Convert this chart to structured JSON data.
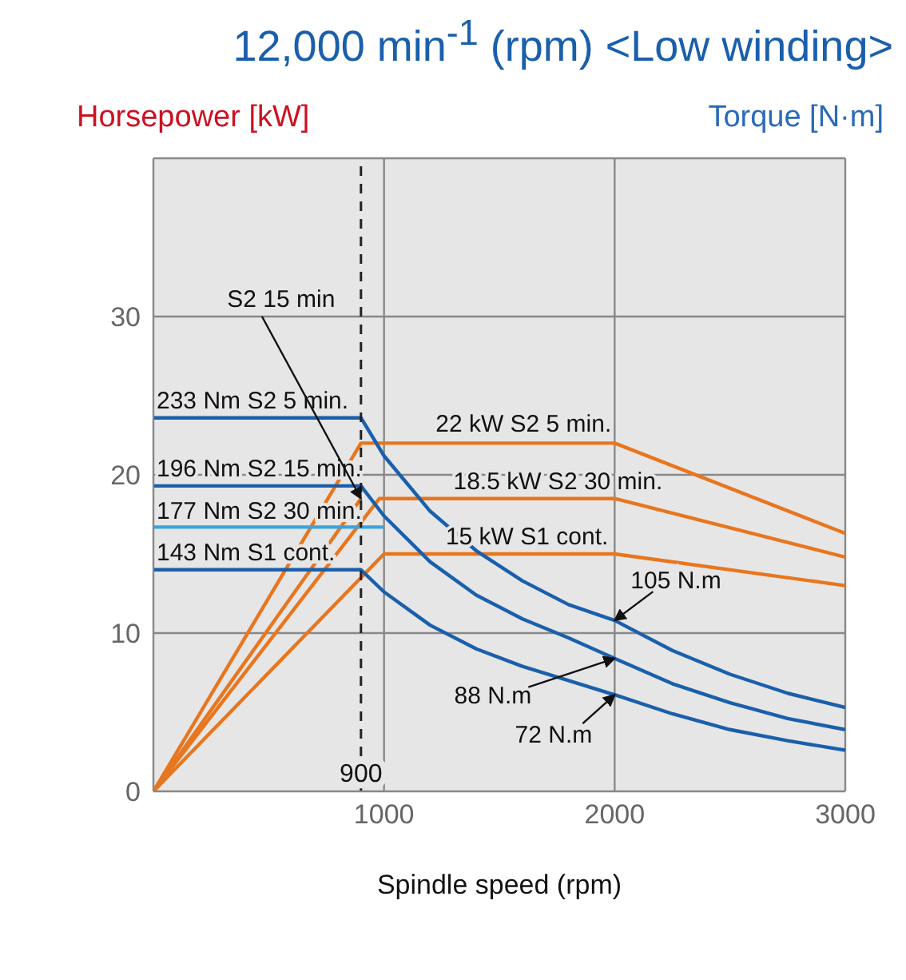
{
  "chart_data": {
    "type": "line",
    "title": "12,000 min$^{-1}$ (rpm) <Low winding>",
    "xlabel": "Spindle speed (rpm)",
    "ylabel": "Horsepower [kW]",
    "y2label": "Torque [N·m]",
    "series": [
      {
        "color": "#e8761e",
        "x": [
          0,
          900,
          2000,
          3000
        ],
        "values": [
          0,
          22,
          22,
          16.3
        ]
      },
      {
        "color": "#e8761e",
        "x": [
          0,
          900
        ],
        "values": [
          0,
          18.5
        ]
      },
      {
        "color": "#e8761e",
        "x": [
          0,
          980,
          2000,
          3000
        ],
        "values": [
          0,
          18.5,
          18.5,
          14.8
        ]
      },
      {
        "color": "#e8761e",
        "x": [
          0,
          1000,
          2000,
          3000
        ],
        "values": [
          0,
          15,
          15,
          13
        ]
      },
      {
        "color": "#1a5fab",
        "x": [
          0,
          900,
          1000,
          1200,
          1400,
          1600,
          1800,
          2000,
          2250,
          2500,
          2750,
          3000
        ],
        "values": [
          23.6,
          23.6,
          21.2,
          17.7,
          15.2,
          13.3,
          11.8,
          10.8,
          8.9,
          7.4,
          6.2,
          5.3
        ]
      },
      {
        "color": "#1a5fab",
        "x": [
          0,
          900,
          1000,
          1200,
          1400,
          1600,
          1800,
          2000,
          2250,
          2500,
          2750,
          3000
        ],
        "values": [
          19.3,
          19.3,
          17.4,
          14.5,
          12.4,
          10.9,
          9.7,
          8.4,
          6.8,
          5.6,
          4.6,
          3.9
        ]
      },
      {
        "color": "#3aa3dd",
        "x": [
          0,
          1000
        ],
        "values": [
          16.7,
          16.7
        ]
      },
      {
        "color": "#1a5fab",
        "x": [
          0,
          900,
          1000,
          1200,
          1400,
          1600,
          1800,
          2000,
          2250,
          2500,
          2750,
          3000
        ],
        "values": [
          14,
          14,
          12.6,
          10.5,
          9,
          7.9,
          7,
          6.1,
          4.9,
          3.9,
          3.2,
          2.6
        ]
      }
    ],
    "annotations": [
      {
        "text": "233 Nm S2 5 min.",
        "x": 0,
        "y": 23.6
      },
      {
        "text": "196 Nm S2 15 min.",
        "x": 0,
        "y": 19.3
      },
      {
        "text": "177 Nm S2 30 min.",
        "x": 0,
        "y": 16.7
      },
      {
        "text": "143 Nm S1 cont.",
        "x": 0,
        "y": 14
      },
      {
        "text": "22 kW S2 5 min.",
        "x": 2000,
        "y": 22
      },
      {
        "text": "18.5 kW S2 30 min.",
        "x": 2000,
        "y": 18.5
      },
      {
        "text": "15 kW S1 cont.",
        "x": 2000,
        "y": 15
      },
      {
        "text": "S2 15 min",
        "x": 900,
        "y": 18.5
      },
      {
        "text": "105 N.m",
        "x": 2000,
        "y": 10.8
      },
      {
        "text": "88 N.m",
        "x": 2000,
        "y": 8.4
      },
      {
        "text": "72 N.m",
        "x": 2000,
        "y": 6.1
      }
    ],
    "ref_lines": [
      {
        "axis": "x",
        "value": 900,
        "label": "900",
        "color": "#222222",
        "line_style": "dashed"
      }
    ],
    "xlim": [
      0,
      3000
    ],
    "xticks": [
      1000,
      2000,
      3000
    ],
    "ylim": [
      0,
      40
    ],
    "yticks": [
      0,
      10,
      20,
      30
    ],
    "grid": true,
    "marker": "none",
    "line_style": "solid"
  }
}
